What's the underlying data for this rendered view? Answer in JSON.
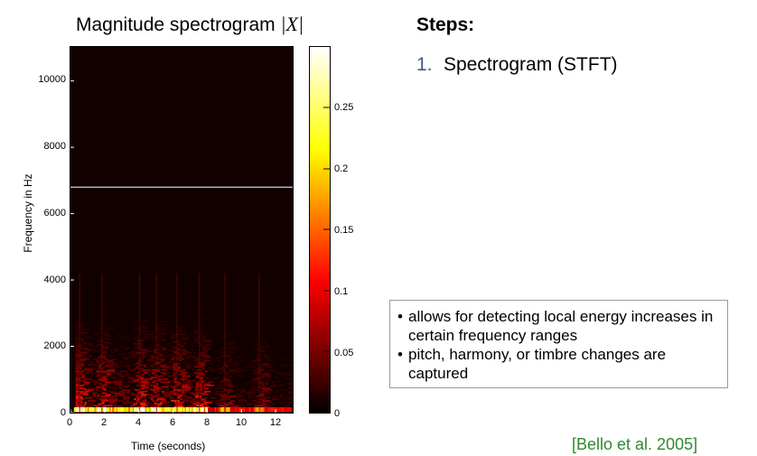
{
  "figure": {
    "title_text": "Magnitude spectrogram ",
    "title_math": "|X|",
    "ylabel": "Frequency in Hz",
    "xlabel": "Time (seconds)"
  },
  "chart_data": {
    "type": "heatmap",
    "title": "Magnitude spectrogram |X|",
    "xlabel": "Time (seconds)",
    "ylabel": "Frequency in Hz",
    "xlim": [
      0,
      13
    ],
    "ylim": [
      0,
      11025
    ],
    "x_ticks": [
      0,
      2,
      4,
      6,
      8,
      10,
      12
    ],
    "y_ticks": [
      0,
      2000,
      4000,
      6000,
      8000,
      10000
    ],
    "colorbar": {
      "range": [
        0,
        0.3
      ],
      "ticks": [
        "0",
        "0.05",
        "0.1",
        "0.15",
        "0.2",
        "0.25"
      ],
      "colormap": "hot"
    },
    "white_line_hz": 6800,
    "onsets_seconds": [
      0.5,
      1.8,
      4.0,
      5.0,
      6.2,
      7.5,
      9.0,
      11.0
    ],
    "energy_band_max_hz": 4200
  },
  "steps": {
    "heading": "Steps:",
    "items": [
      {
        "num": "1.",
        "label": "Spectrogram (STFT)"
      }
    ]
  },
  "info_box": {
    "bullets": [
      {
        "dot": "•",
        "text": "allows for detecting local energy increases in certain frequency ranges"
      },
      {
        "dot": "•",
        "text": "pitch, harmony, or timbre changes are captured"
      }
    ]
  },
  "citation": "[Bello et al. 2005]",
  "colors": {
    "step_number": "#3c5a8c",
    "citation": "#2f8a2f",
    "spectrogram_background": "#120000"
  }
}
